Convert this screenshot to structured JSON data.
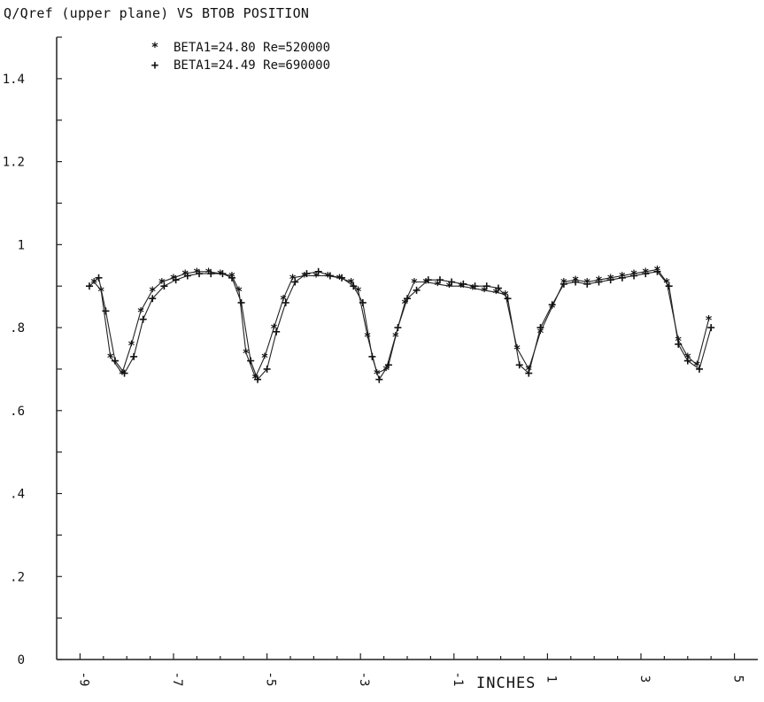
{
  "chart_data": {
    "type": "line",
    "title": "Q/Qref (upper plane) VS BTOB POSITION",
    "xlabel": "INCHES",
    "ylabel": "",
    "xlim": [
      -9.5,
      5.5
    ],
    "ylim": [
      0,
      1.5
    ],
    "grid": false,
    "legend_placement": "top-left",
    "x_ticks": [
      -9,
      -7,
      -5,
      -3,
      -1,
      1,
      3,
      5
    ],
    "x_tick_labels": [
      "-9",
      "-7",
      "-5",
      "-3",
      "-1",
      "1",
      "3",
      "5"
    ],
    "y_ticks": [
      0,
      0.2,
      0.4,
      0.6,
      0.8,
      1.0,
      1.2,
      1.4
    ],
    "y_tick_labels": [
      "0",
      ".2",
      ".4",
      ".6",
      ".8",
      "1",
      "1.2",
      "1.4"
    ],
    "series": [
      {
        "name": "BETA1=24.80  Re=520000",
        "marker": "star",
        "points": [
          [
            -8.7,
            0.91
          ],
          [
            -8.55,
            0.89
          ],
          [
            -8.35,
            0.73
          ],
          [
            -8.1,
            0.69
          ],
          [
            -7.9,
            0.76
          ],
          [
            -7.7,
            0.84
          ],
          [
            -7.45,
            0.89
          ],
          [
            -7.25,
            0.91
          ],
          [
            -7.0,
            0.92
          ],
          [
            -6.75,
            0.93
          ],
          [
            -6.5,
            0.935
          ],
          [
            -6.25,
            0.935
          ],
          [
            -6.0,
            0.93
          ],
          [
            -5.75,
            0.925
          ],
          [
            -5.6,
            0.89
          ],
          [
            -5.45,
            0.74
          ],
          [
            -5.25,
            0.68
          ],
          [
            -5.05,
            0.73
          ],
          [
            -4.85,
            0.8
          ],
          [
            -4.65,
            0.87
          ],
          [
            -4.45,
            0.92
          ],
          [
            -4.2,
            0.925
          ],
          [
            -3.95,
            0.925
          ],
          [
            -3.7,
            0.925
          ],
          [
            -3.45,
            0.92
          ],
          [
            -3.2,
            0.91
          ],
          [
            -3.05,
            0.89
          ],
          [
            -2.85,
            0.78
          ],
          [
            -2.65,
            0.69
          ],
          [
            -2.45,
            0.7
          ],
          [
            -2.25,
            0.78
          ],
          [
            -2.05,
            0.86
          ],
          [
            -1.85,
            0.91
          ],
          [
            -1.6,
            0.91
          ],
          [
            -1.35,
            0.905
          ],
          [
            -1.1,
            0.9
          ],
          [
            -0.85,
            0.9
          ],
          [
            -0.6,
            0.895
          ],
          [
            -0.35,
            0.89
          ],
          [
            -0.1,
            0.885
          ],
          [
            0.1,
            0.88
          ],
          [
            0.35,
            0.75
          ],
          [
            0.6,
            0.7
          ],
          [
            0.85,
            0.79
          ],
          [
            1.1,
            0.85
          ],
          [
            1.35,
            0.91
          ],
          [
            1.6,
            0.915
          ],
          [
            1.85,
            0.91
          ],
          [
            2.1,
            0.915
          ],
          [
            2.35,
            0.92
          ],
          [
            2.6,
            0.925
          ],
          [
            2.85,
            0.93
          ],
          [
            3.1,
            0.935
          ],
          [
            3.35,
            0.94
          ],
          [
            3.55,
            0.91
          ],
          [
            3.8,
            0.77
          ],
          [
            4.0,
            0.73
          ],
          [
            4.2,
            0.71
          ],
          [
            4.45,
            0.82
          ]
        ]
      },
      {
        "name": "BETA1=24.49  Re=690000",
        "marker": "plus",
        "points": [
          [
            -8.8,
            0.9
          ],
          [
            -8.6,
            0.92
          ],
          [
            -8.45,
            0.84
          ],
          [
            -8.25,
            0.72
          ],
          [
            -8.05,
            0.69
          ],
          [
            -7.85,
            0.73
          ],
          [
            -7.65,
            0.82
          ],
          [
            -7.45,
            0.87
          ],
          [
            -7.2,
            0.9
          ],
          [
            -6.95,
            0.915
          ],
          [
            -6.7,
            0.925
          ],
          [
            -6.45,
            0.93
          ],
          [
            -6.2,
            0.93
          ],
          [
            -5.95,
            0.93
          ],
          [
            -5.75,
            0.92
          ],
          [
            -5.55,
            0.86
          ],
          [
            -5.35,
            0.72
          ],
          [
            -5.2,
            0.675
          ],
          [
            -5.0,
            0.7
          ],
          [
            -4.8,
            0.79
          ],
          [
            -4.6,
            0.86
          ],
          [
            -4.4,
            0.91
          ],
          [
            -4.15,
            0.93
          ],
          [
            -3.9,
            0.935
          ],
          [
            -3.65,
            0.925
          ],
          [
            -3.4,
            0.92
          ],
          [
            -3.15,
            0.9
          ],
          [
            -2.95,
            0.86
          ],
          [
            -2.75,
            0.73
          ],
          [
            -2.6,
            0.675
          ],
          [
            -2.4,
            0.71
          ],
          [
            -2.2,
            0.8
          ],
          [
            -2.0,
            0.87
          ],
          [
            -1.8,
            0.89
          ],
          [
            -1.55,
            0.915
          ],
          [
            -1.3,
            0.915
          ],
          [
            -1.05,
            0.91
          ],
          [
            -0.8,
            0.905
          ],
          [
            -0.55,
            0.9
          ],
          [
            -0.3,
            0.9
          ],
          [
            -0.05,
            0.895
          ],
          [
            0.15,
            0.87
          ],
          [
            0.4,
            0.71
          ],
          [
            0.6,
            0.69
          ],
          [
            0.85,
            0.8
          ],
          [
            1.1,
            0.855
          ],
          [
            1.35,
            0.905
          ],
          [
            1.6,
            0.91
          ],
          [
            1.85,
            0.905
          ],
          [
            2.1,
            0.91
          ],
          [
            2.35,
            0.915
          ],
          [
            2.6,
            0.92
          ],
          [
            2.85,
            0.925
          ],
          [
            3.1,
            0.93
          ],
          [
            3.35,
            0.935
          ],
          [
            3.6,
            0.9
          ],
          [
            3.8,
            0.76
          ],
          [
            4.0,
            0.72
          ],
          [
            4.25,
            0.7
          ],
          [
            4.5,
            0.8
          ]
        ]
      }
    ]
  }
}
